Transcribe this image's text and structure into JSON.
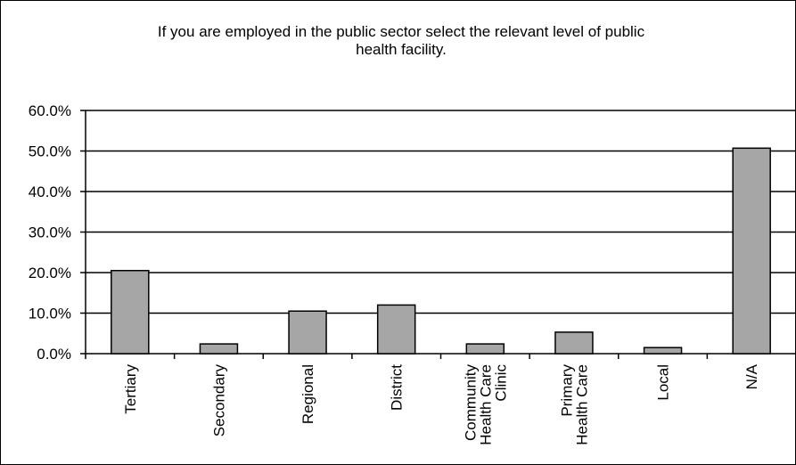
{
  "chart_data": {
    "type": "bar",
    "title": "If you are employed in the public sector select the relevant level of public health facility.",
    "title_lines": [
      "If you are employed in the public sector select the relevant level of public",
      "health facility."
    ],
    "categories": [
      "Tertiary",
      "Secondary",
      "Regional",
      "District",
      "Community Health Care Clinic",
      "Primary Health Care",
      "Local",
      "N/A"
    ],
    "category_label_lines": [
      [
        "Tertiary"
      ],
      [
        "Secondary"
      ],
      [
        "Regional"
      ],
      [
        "District"
      ],
      [
        "Community",
        "Health Care",
        "Clinic"
      ],
      [
        "Primary",
        "Health Care"
      ],
      [
        "Local"
      ],
      [
        "N/A"
      ]
    ],
    "values": [
      20.5,
      2.4,
      10.5,
      12.0,
      2.4,
      5.3,
      1.5,
      50.7
    ],
    "ylim": [
      0,
      60
    ],
    "yticks": [
      "0.0%",
      "10.0%",
      "20.0%",
      "30.0%",
      "40.0%",
      "50.0%",
      "60.0%"
    ],
    "grid": true,
    "legend": "none",
    "colors": {
      "bar_fill": "#a6a6a6",
      "bar_stroke": "#000000",
      "grid": "#000000"
    }
  }
}
